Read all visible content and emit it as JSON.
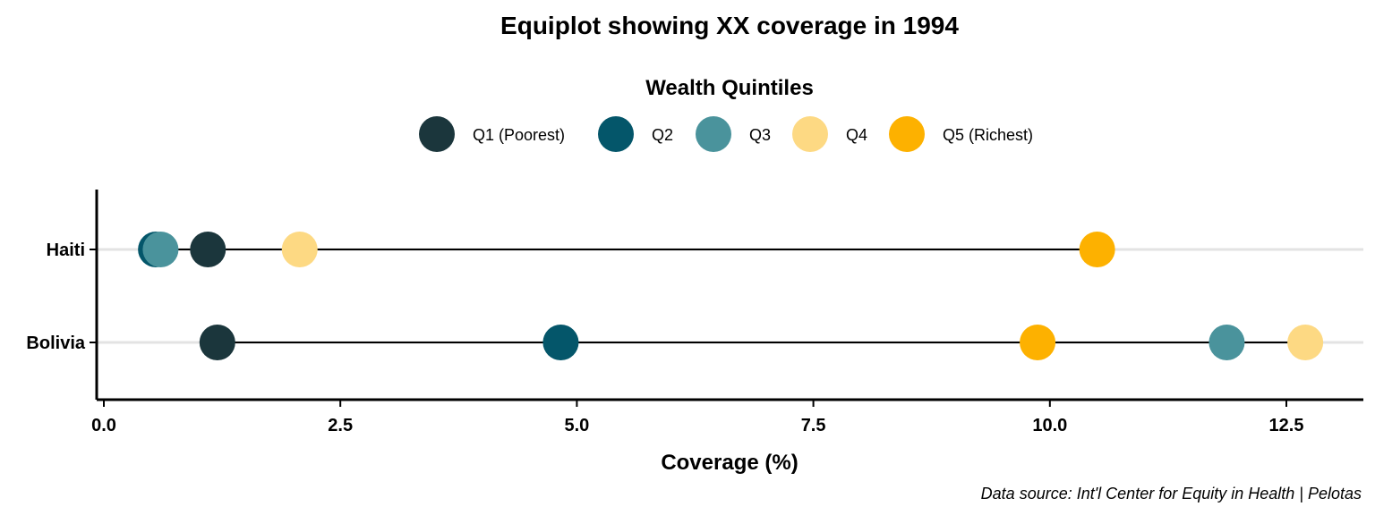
{
  "chart_data": {
    "type": "scatter",
    "title": "Equiplot showing XX coverage in 1994",
    "xlabel": "Coverage (%)",
    "ylabel": "",
    "xlim": [
      0,
      13.3
    ],
    "x_ticks": [
      "0.0",
      "2.5",
      "5.0",
      "7.5",
      "10.0",
      "12.5"
    ],
    "x_tick_values": [
      0,
      2.5,
      5,
      7.5,
      10,
      12.5
    ],
    "categories": [
      "Haiti",
      "Bolivia"
    ],
    "legend": {
      "title": "Wealth Quintiles",
      "placement": "top"
    },
    "grid": "horizontal major lines only",
    "caption": "Data source: Int'l Center for Equity in Health | Pelotas",
    "series": [
      {
        "name": "Q1 (Poorest)",
        "color": "#1b363c",
        "values": [
          1.1,
          1.2
        ]
      },
      {
        "name": "Q2",
        "color": "#04566a",
        "values": [
          0.55,
          4.83
        ]
      },
      {
        "name": "Q3",
        "color": "#4a939c",
        "values": [
          0.6,
          11.87
        ]
      },
      {
        "name": "Q4",
        "color": "#fdd983",
        "values": [
          2.07,
          12.7
        ]
      },
      {
        "name": "Q5 (Richest)",
        "color": "#fdb100",
        "values": [
          10.5,
          9.87
        ]
      }
    ]
  }
}
